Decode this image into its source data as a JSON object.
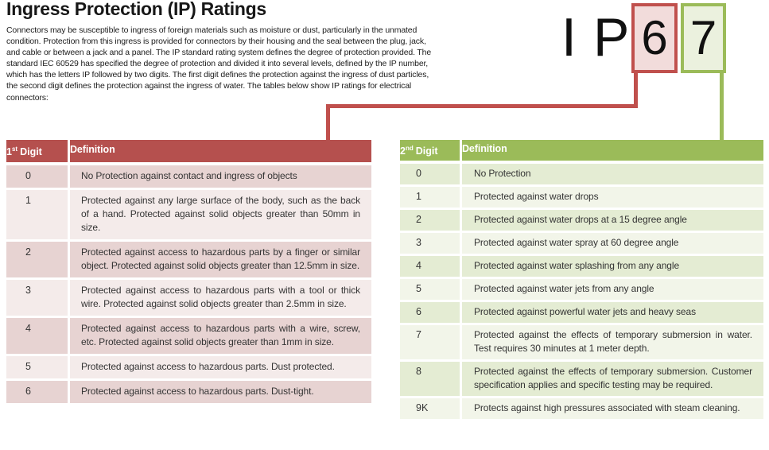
{
  "page": {
    "title": "Ingress Protection (IP) Ratings",
    "intro": "Connectors may be susceptible to ingress of foreign materials such as moisture or dust, particularly in the unmated condition. Protection from this ingress is provided for connectors by their housing and the seal between the plug, jack, and cable or between a jack and a panel. The IP standard rating system defines the degree of protection provided. The standard IEC 60529 has specified the degree of protection and divided it into several levels, defined by the IP number, which has the letters IP followed by two digits. The first digit defines the protection against the ingress of dust particles, the second digit defines the protection against the ingress of water. The tables below show IP ratings for electrical connectors:"
  },
  "ip_graphic": {
    "letter_i": "I",
    "letter_p": "P",
    "first_digit": "6",
    "second_digit": "7"
  },
  "colors": {
    "red_accent": "#c0504d",
    "red_box_fill": "#f2dcdb",
    "red_header": "#b5504e",
    "red_row_dark": "#e7d3d2",
    "red_row_light": "#f4ebea",
    "green_accent": "#9bbb59",
    "green_box_fill": "#ebf1de",
    "green_row_dark": "#e4ecd3",
    "green_row_light": "#f2f5e9"
  },
  "table_first_digit": {
    "header": {
      "digit_num": "1",
      "digit_sup": "st",
      "digit_word": "Digit",
      "definition_label": "Definition"
    },
    "rows": [
      {
        "digit": "0",
        "definition": "No Protection against contact and ingress of objects"
      },
      {
        "digit": "1",
        "definition": "Protected against any large surface of the body, such as the back of a hand. Protected against solid objects greater than 50mm in size."
      },
      {
        "digit": "2",
        "definition": "Protected against access to hazardous parts by a finger or similar object. Protected against solid objects greater than 12.5mm in size."
      },
      {
        "digit": "3",
        "definition": "Protected against access to hazardous parts with a tool or thick wire. Protected against solid objects greater than 2.5mm in size."
      },
      {
        "digit": "4",
        "definition": "Protected against access to hazardous parts with a wire, screw, etc. Protected against solid objects greater than 1mm in size."
      },
      {
        "digit": "5",
        "definition": "Protected against access to hazardous parts. Dust protected."
      },
      {
        "digit": "6",
        "definition": "Protected against access to hazardous parts. Dust-tight."
      }
    ]
  },
  "table_second_digit": {
    "header": {
      "digit_num": "2",
      "digit_sup": "nd",
      "digit_word": "Digit",
      "definition_label": "Definition"
    },
    "rows": [
      {
        "digit": "0",
        "definition": "No Protection"
      },
      {
        "digit": "1",
        "definition": "Protected against water drops"
      },
      {
        "digit": "2",
        "definition": "Protected against water drops at a 15 degree angle"
      },
      {
        "digit": "3",
        "definition": "Protected against water spray at 60 degree angle"
      },
      {
        "digit": "4",
        "definition": "Protected against water splashing from any angle"
      },
      {
        "digit": "5",
        "definition": "Protected against water jets from any angle"
      },
      {
        "digit": "6",
        "definition": "Protected against powerful water jets and heavy seas"
      },
      {
        "digit": "7",
        "definition": "Protected against the effects of temporary submersion in water. Test requires 30 minutes at 1 meter depth."
      },
      {
        "digit": "8",
        "definition": "Protected against the effects of temporary submersion. Customer specification applies and specific testing may be required."
      },
      {
        "digit": "9K",
        "definition": "Protects against high pressures associated with steam cleaning."
      }
    ]
  }
}
